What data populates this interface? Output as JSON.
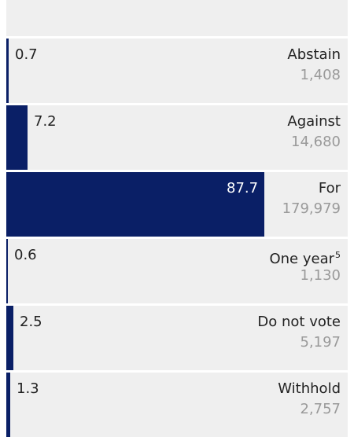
{
  "colors": {
    "bar": "#0a1f66",
    "row_bg": "#efefef",
    "count_text": "#9a9a9a"
  },
  "chart_data": {
    "type": "bar",
    "orientation": "horizontal",
    "categories": [
      "Abstain",
      "Against",
      "For",
      "One year",
      "Do not vote",
      "Withhold"
    ],
    "category_notes": [
      "",
      "",
      "",
      "5",
      "",
      ""
    ],
    "values": [
      0.7,
      7.2,
      87.7,
      0.6,
      2.5,
      1.3
    ],
    "value_labels": [
      "0.7",
      "7.2",
      "87.7",
      "0.6",
      "2.5",
      "1.3"
    ],
    "counts": [
      "1,408",
      "14,680",
      "179,979",
      "1,130",
      "5,197",
      "2,757"
    ],
    "xlim": [
      0,
      100
    ]
  }
}
